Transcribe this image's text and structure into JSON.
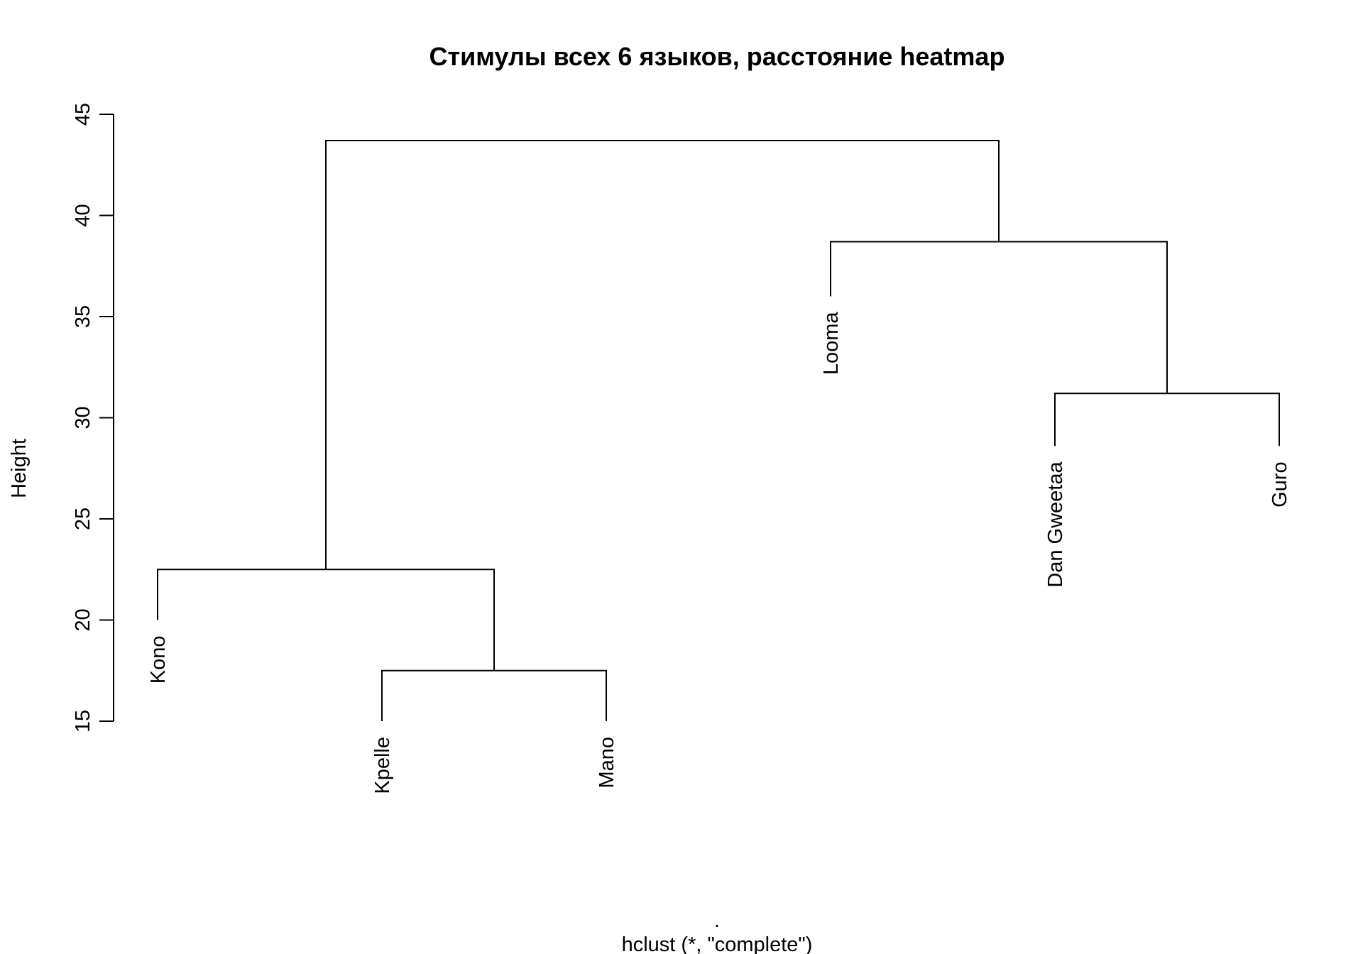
{
  "chart_data": {
    "type": "dendrogram",
    "title": "Стимулы всех 6 языков, расстояние heatmap",
    "ylabel": "Height",
    "xlabel_top": ".",
    "xlabel": "hclust (*, \"complete\")",
    "ylim": [
      15,
      45
    ],
    "yticks": [
      "15",
      "20",
      "25",
      "30",
      "35",
      "40",
      "45"
    ],
    "leaves": [
      {
        "label": "Kono",
        "order": 1,
        "height": 20
      },
      {
        "label": "Kpelle",
        "order": 2,
        "height": 15
      },
      {
        "label": "Mano",
        "order": 3,
        "height": 15
      },
      {
        "label": "Looma",
        "order": 4,
        "height": 36
      },
      {
        "label": "Dan Gweetaa",
        "order": 5,
        "height": 28.6
      },
      {
        "label": "Guro",
        "order": 6,
        "height": 28.6
      }
    ],
    "merges": [
      {
        "left": "Kpelle",
        "right": "Mano",
        "height": 17.5
      },
      {
        "left": "Kono",
        "right": "Kpelle+Mano",
        "height": 22.5
      },
      {
        "left": "Dan Gweetaa",
        "right": "Guro",
        "height": 31.2
      },
      {
        "left": "Looma",
        "right": "Dan Gweetaa+Guro",
        "height": 38.7
      },
      {
        "left": "Kono+Kpelle+Mano",
        "right": "Looma+Dan Gweetaa+Guro",
        "height": 43.7
      }
    ]
  }
}
